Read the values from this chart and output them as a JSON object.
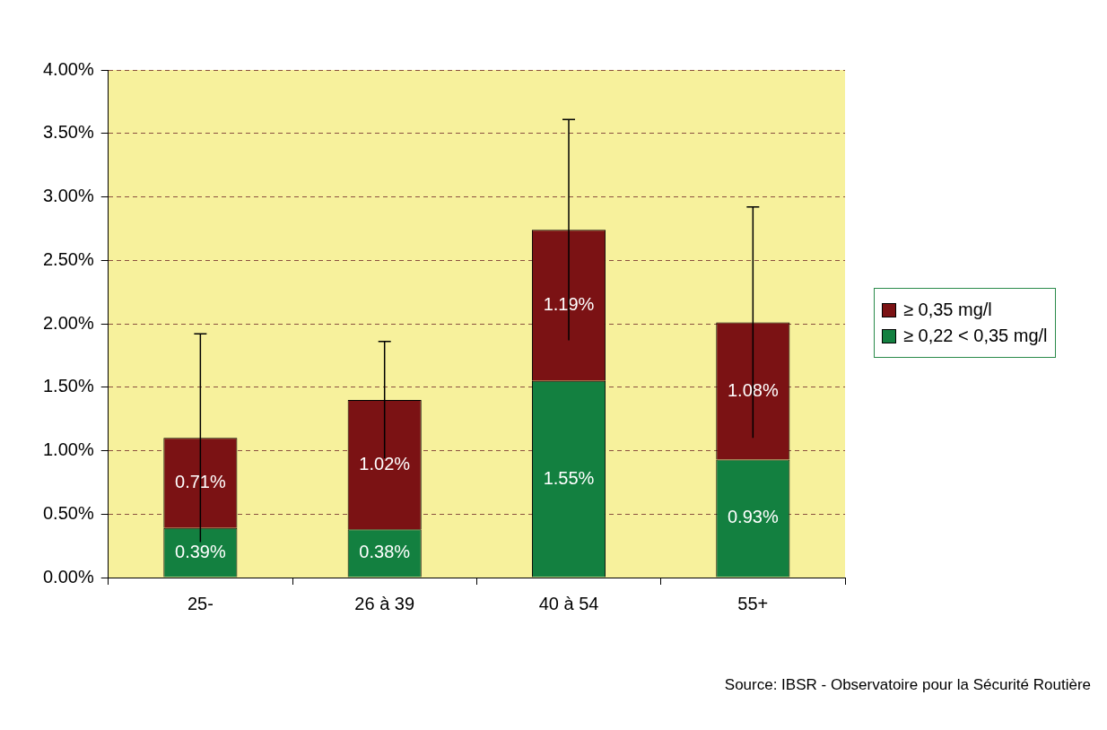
{
  "chart_data": {
    "type": "bar",
    "stacked": true,
    "categories": [
      "25-",
      "26 à 39",
      "40 à 54",
      "55+"
    ],
    "series": [
      {
        "name": "≥ 0,22 < 0,35 mg/l",
        "color": "#138040",
        "values": [
          0.39,
          0.38,
          1.55,
          0.93
        ],
        "value_labels": [
          "0.39%",
          "0.38%",
          "1.55%",
          "0.93%"
        ]
      },
      {
        "name": "≥ 0,35 mg/l",
        "color": "#7b1214",
        "values": [
          0.71,
          1.02,
          1.19,
          1.08
        ],
        "value_labels": [
          "0.71%",
          "1.02%",
          "1.19%",
          "1.08%"
        ],
        "errors": [
          0.82,
          0.46,
          0.87,
          0.91
        ]
      }
    ],
    "ylim": [
      0,
      4
    ],
    "yticks": [
      {
        "value": 0,
        "label": "0.00%"
      },
      {
        "value": 0.5,
        "label": "0.50%"
      },
      {
        "value": 1,
        "label": "1.00%"
      },
      {
        "value": 1.5,
        "label": "1.50%"
      },
      {
        "value": 2,
        "label": "2.00%"
      },
      {
        "value": 2.5,
        "label": "2.50%"
      },
      {
        "value": 3,
        "label": "3.00%"
      },
      {
        "value": 3.5,
        "label": "3.50%"
      },
      {
        "value": 4,
        "label": "4.00%"
      }
    ],
    "grid": "y",
    "line_style": "dashed",
    "legend": "right",
    "annotations": [
      "Source: IBSR - Observatoire pour la Sécurité Routière"
    ]
  }
}
